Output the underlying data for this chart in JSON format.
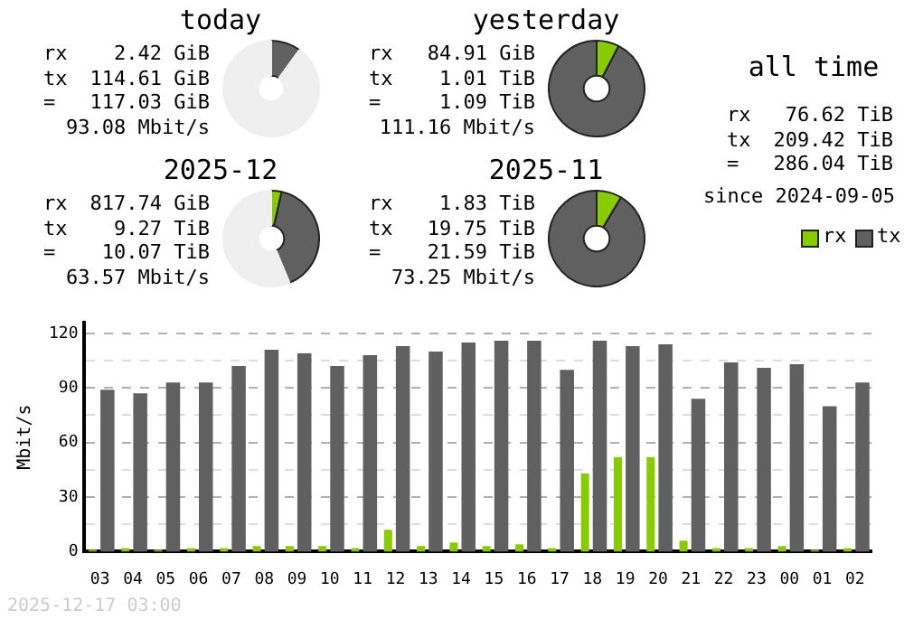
{
  "chart_data": [
    {
      "type": "donut",
      "title": "today",
      "categories": [
        null,
        null,
        null
      ],
      "values": [
        null,
        10,
        90
      ],
      "colors": [
        "#88cc00",
        "#606060",
        "#efefef"
      ],
      "annotations": [
        "rx 2.42 GiB",
        "tx 114.61 GiB",
        "= 117.03 GiB",
        "93.08 Mbit/s"
      ]
    },
    {
      "type": "donut",
      "title": "yesterday",
      "categories": [
        null,
        null
      ],
      "values": [
        7.6,
        92.4
      ],
      "colors": [
        "#88cc00",
        "#606060"
      ],
      "annotations": [
        "rx 84.91 GiB",
        "tx 1.01 TiB",
        "= 1.09 TiB",
        "111.16 Mbit/s"
      ]
    },
    {
      "type": "other",
      "title": "all time",
      "annotations": [
        "rx 76.62 TiB",
        "tx 209.42 TiB",
        "= 286.04 TiB",
        "since 2024-09-05"
      ]
    },
    {
      "type": "donut",
      "title": "2025-12",
      "categories": [
        null,
        null,
        null
      ],
      "values": [
        3.5,
        40.2,
        56.3
      ],
      "colors": [
        "#88cc00",
        "#606060",
        "#efefef"
      ],
      "annotations": [
        "rx 817.74 GiB",
        "tx 9.27 TiB",
        "= 10.07 TiB",
        "63.57 Mbit/s"
      ]
    },
    {
      "type": "donut",
      "title": "2025-11",
      "categories": [
        null,
        null
      ],
      "values": [
        8.5,
        91.5
      ],
      "colors": [
        "#88cc00",
        "#606060"
      ],
      "annotations": [
        "rx 1.83 TiB",
        "tx 19.75 TiB",
        "= 21.59 TiB",
        "73.25 Mbit/s"
      ]
    },
    {
      "type": "bar",
      "ylabel": "Mbit/s",
      "categories": [
        "03",
        "04",
        "05",
        "06",
        "07",
        "08",
        "09",
        "10",
        "11",
        "12",
        "13",
        "14",
        "15",
        "16",
        "17",
        "18",
        "19",
        "20",
        "21",
        "22",
        "23",
        "00",
        "01",
        "02"
      ],
      "series": [
        {
          "name": "rx",
          "color": "#88cc00",
          "values": [
            1,
            2,
            1,
            2,
            2,
            3,
            3,
            3,
            2,
            12,
            3,
            5,
            3,
            4,
            2,
            43,
            52,
            52,
            6,
            2,
            2,
            3,
            1,
            2
          ]
        },
        {
          "name": "tx",
          "color": "#606060",
          "values": [
            89,
            87,
            93,
            93,
            102,
            111,
            109,
            102,
            108,
            113,
            110,
            115,
            116,
            116,
            100,
            116,
            113,
            114,
            84,
            104,
            101,
            103,
            80,
            93
          ]
        }
      ],
      "ylim": [
        0,
        126
      ],
      "yticks": [
        0,
        {
          "value": 15,
          "label": null
        },
        30,
        {
          "value": 45,
          "label": null
        },
        60,
        {
          "value": 75,
          "label": null
        },
        90,
        {
          "value": 105,
          "label": null
        },
        120
      ],
      "grid": true,
      "legend": "top right",
      "annotations": [
        "2025-12-17 03:00"
      ]
    }
  ]
}
